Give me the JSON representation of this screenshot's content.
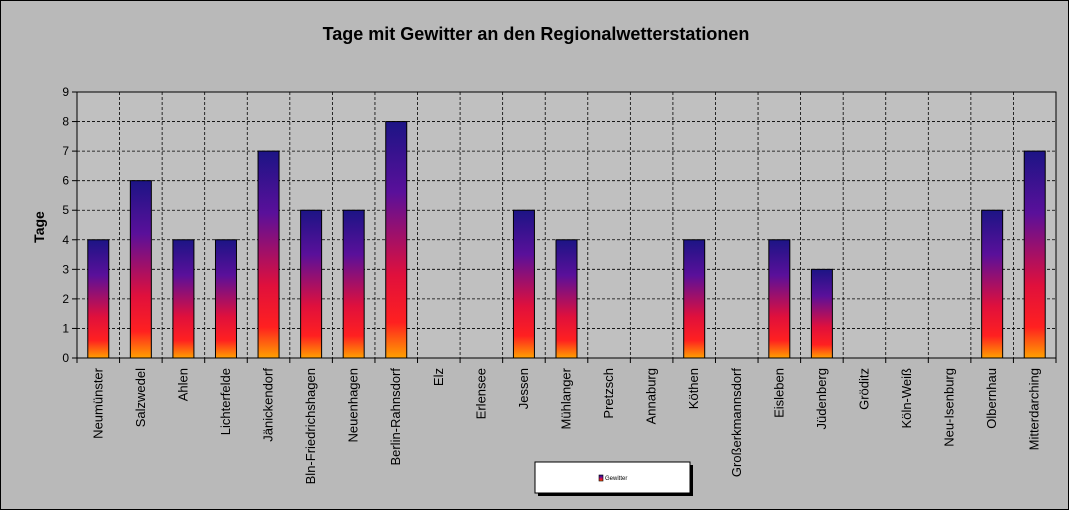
{
  "chart_data": {
    "type": "bar",
    "title": "Tage mit Gewitter  an den Regionalwetterstationen",
    "ylabel": "Tage",
    "xlabel": "",
    "ylim": [
      0,
      9
    ],
    "yticks": [
      0,
      1,
      2,
      3,
      4,
      5,
      6,
      7,
      8,
      9
    ],
    "grid": true,
    "legend_position": "bottom-center",
    "categories": [
      "Neumünster",
      "Salzwedel",
      "Ahlen",
      "Lichterfelde",
      "Jänickendorf",
      "Bln-Friedrichshagen",
      "Neuenhagen",
      "Berlin-Rahnsdorf",
      "Elz",
      "Erlensee",
      "Jessen",
      "Mühlanger",
      "Pretzsch",
      "Annaburg",
      "Köthen",
      "Großerkmannsdorf",
      "Eisleben",
      "Jüdenberg",
      "Gröditz",
      "Köln-Weiß",
      "Neu-Isenburg",
      "Olbernhau",
      "Mitterdarching"
    ],
    "series": [
      {
        "name": "Gewitter",
        "values": [
          4,
          6,
          4,
          4,
          7,
          5,
          5,
          8,
          0,
          0,
          5,
          4,
          0,
          0,
          4,
          0,
          4,
          3,
          0,
          0,
          0,
          5,
          7
        ]
      }
    ]
  },
  "colors": {
    "background": "#b9b9b9",
    "plot_background": "#c0c0c0",
    "bar_top": "#1c1485",
    "bar_mid": "#d0104a",
    "bar_bottom": "#ff8a00",
    "grid": "#000000"
  }
}
